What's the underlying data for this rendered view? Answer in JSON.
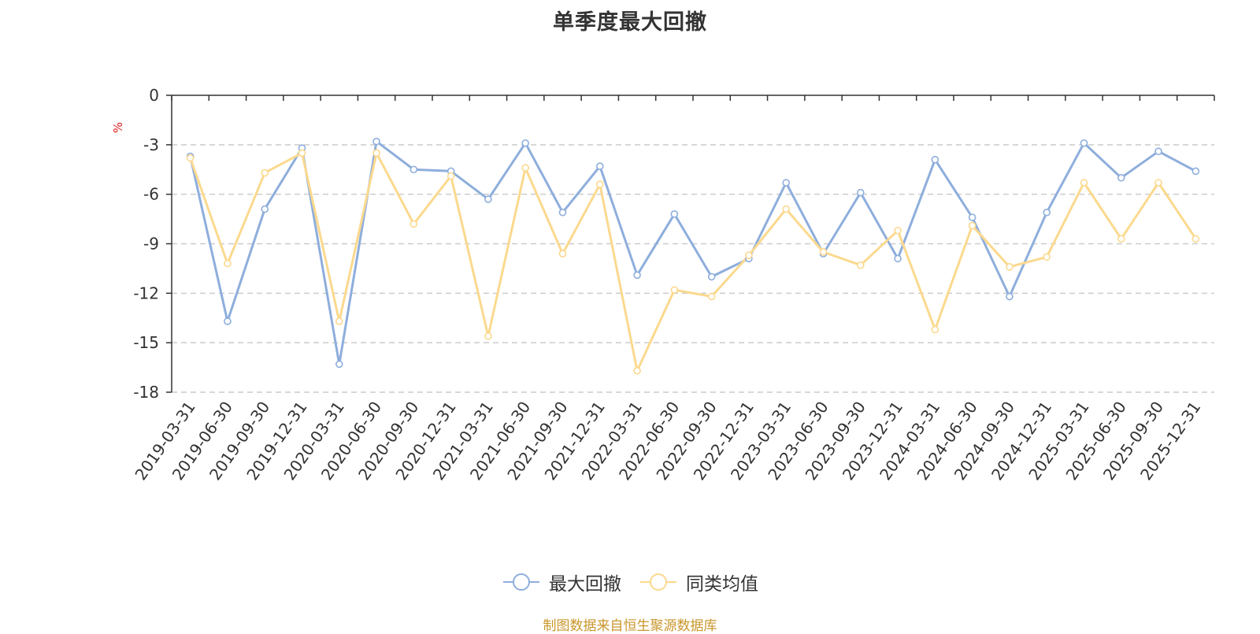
{
  "chart_data": {
    "type": "line",
    "title": "单季度最大回撤",
    "ylabel": "%",
    "ylim": [
      -18,
      0
    ],
    "yticks": [
      "0",
      "-3",
      "-6",
      "-9",
      "-12",
      "-15",
      "-18"
    ],
    "grid": true,
    "legend_position": "bottom",
    "categories": [
      "2019-03-31",
      "2019-06-30",
      "2019-09-30",
      "2019-12-31",
      "2020-03-31",
      "2020-06-30",
      "2020-09-30",
      "2020-12-31",
      "2021-03-31",
      "2021-06-30",
      "2021-09-30",
      "2021-12-31",
      "2022-03-31",
      "2022-06-30",
      "2022-09-30",
      "2022-12-31",
      "2023-03-31",
      "2023-06-30",
      "2023-09-30",
      "2023-12-31",
      "2024-03-31",
      "2024-06-30",
      "2024-09-30",
      "2024-12-31",
      "2025-03-31",
      "2025-06-30",
      "2025-09-30",
      "2025-12-31"
    ],
    "series": [
      {
        "name": "最大回撤",
        "color": "#8eaedc",
        "values": [
          -3.7,
          -13.7,
          -6.9,
          -3.2,
          -16.3,
          -2.8,
          -4.5,
          -4.6,
          -6.3,
          -2.9,
          -7.1,
          -4.3,
          -10.9,
          -7.2,
          -11.0,
          -9.9,
          -5.3,
          -9.6,
          -5.9,
          -9.9,
          -3.9,
          -7.4,
          -12.2,
          -7.1,
          -2.9,
          -5.0,
          -3.4,
          -4.6
        ]
      },
      {
        "name": "同类均值",
        "color": "#fbd98e",
        "values": [
          -3.8,
          -10.2,
          -4.7,
          -3.5,
          -13.7,
          -3.5,
          -7.8,
          -4.9,
          -14.6,
          -4.4,
          -9.6,
          -5.4,
          -16.7,
          -11.8,
          -12.2,
          -9.7,
          -6.9,
          -9.5,
          -10.3,
          -8.2,
          -14.2,
          -7.9,
          -10.4,
          -9.8,
          -5.3,
          -8.7,
          -5.3,
          -8.7
        ]
      }
    ]
  },
  "legend": {
    "items": [
      {
        "label": "最大回撤",
        "color": "#8eaedc"
      },
      {
        "label": "同类均值",
        "color": "#fbd98e"
      }
    ]
  },
  "footer": {
    "source": "制图数据来自恒生聚源数据库"
  },
  "colors": {
    "axis": "#333333",
    "grid": "#cccccc",
    "ylabel": "#e02020",
    "source": "#c9962c"
  }
}
